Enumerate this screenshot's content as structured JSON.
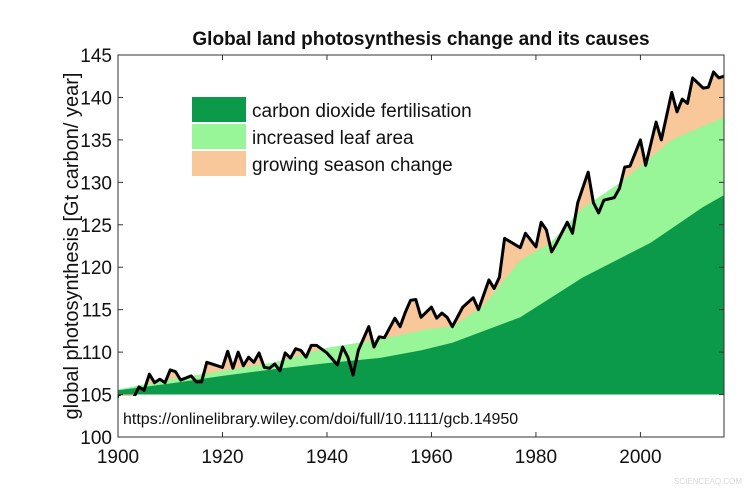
{
  "chart_data": {
    "type": "area",
    "title": "Global land photosynthesis change and its causes",
    "xlabel": "",
    "ylabel": "global photosynthesis [Gt carbon/ year]",
    "xlim": [
      1900,
      2016
    ],
    "ylim": [
      100,
      145
    ],
    "baseline": 105,
    "xticks": [
      1900,
      1920,
      1940,
      1960,
      1980,
      2000
    ],
    "yticks": [
      100,
      105,
      110,
      115,
      120,
      125,
      130,
      135,
      140,
      145
    ],
    "grid": false,
    "legend_position": "top-left",
    "annotation": "https://onlinelibrary.wiley.com/doi/full/10.1111/gcb.14950",
    "series": [
      {
        "name": "carbon dioxide fertilisation",
        "color": "#0a9a4a",
        "x": [
          1900,
          1910,
          1920,
          1930,
          1940,
          1950,
          1958,
          1964,
          1977,
          1989,
          2002,
          2012,
          2016
        ],
        "y": [
          105.5,
          106.3,
          107.2,
          108.0,
          108.7,
          109.3,
          110.2,
          111.1,
          114.1,
          118.8,
          122.9,
          127.1,
          128.5
        ]
      },
      {
        "name": "increased leaf area",
        "color": "#98f598",
        "x": [
          1900,
          1910,
          1920,
          1930,
          1940,
          1950,
          1960,
          1964,
          1970,
          1977,
          1983,
          1989,
          1996,
          2006,
          2016
        ],
        "y": [
          105.6,
          106.8,
          107.8,
          108.8,
          110.5,
          111.5,
          112.8,
          113.0,
          115.5,
          120.8,
          123.0,
          127.0,
          129.9,
          135.0,
          137.7
        ]
      },
      {
        "name": "growing season change",
        "color": "#f8c89a",
        "x": [
          1900,
          1902,
          1903,
          1904,
          1905,
          1906,
          1907,
          1908,
          1909,
          1910,
          1911,
          1912,
          1914,
          1915,
          1916,
          1917,
          1920,
          1921,
          1922,
          1923,
          1924,
          1925,
          1926,
          1927,
          1928,
          1929,
          1930,
          1931,
          1932,
          1933,
          1934,
          1935,
          1936,
          1937,
          1938,
          1940,
          1942,
          1943,
          1944,
          1945,
          1946,
          1948,
          1949,
          1950,
          1951,
          1953,
          1954,
          1955,
          1956,
          1957,
          1958,
          1960,
          1961,
          1962,
          1963,
          1964,
          1966,
          1968,
          1969,
          1971,
          1972,
          1973,
          1974,
          1977,
          1978,
          1980,
          1981,
          1982,
          1983,
          1984,
          1986,
          1987,
          1988,
          1990,
          1991,
          1992,
          1993,
          1995,
          1996,
          1997,
          1998,
          2000,
          2001,
          2003,
          2004,
          2006,
          2007,
          2008,
          2009,
          2010,
          2012,
          2013,
          2014,
          2015,
          2016
        ],
        "y": [
          104.9,
          104.0,
          104.6,
          105.9,
          105.5,
          107.4,
          106.4,
          106.8,
          106.4,
          107.9,
          107.7,
          106.7,
          107.2,
          106.5,
          106.5,
          108.8,
          108.2,
          110.1,
          108.1,
          110.0,
          108.4,
          109.4,
          108.8,
          109.9,
          108.2,
          108.1,
          108.6,
          107.8,
          109.9,
          109.3,
          110.4,
          110.2,
          109.4,
          110.8,
          110.8,
          109.9,
          108.5,
          110.6,
          109.4,
          107.3,
          110.2,
          113.0,
          110.6,
          111.8,
          111.7,
          114.0,
          113.0,
          114.7,
          116.1,
          116.2,
          114.1,
          115.3,
          114.0,
          114.6,
          114.1,
          113.0,
          115.3,
          116.4,
          115.0,
          118.5,
          117.5,
          118.8,
          123.4,
          122.3,
          124.0,
          122.4,
          125.3,
          124.4,
          121.8,
          122.9,
          125.3,
          124.0,
          127.6,
          131.2,
          127.6,
          126.4,
          127.9,
          128.2,
          129.3,
          131.8,
          131.9,
          135.0,
          132.0,
          137.1,
          135.0,
          140.6,
          138.3,
          139.8,
          139.3,
          142.3,
          141.1,
          141.2,
          143.0,
          142.3,
          142.5
        ]
      }
    ],
    "total_line_color": "#000000"
  },
  "watermark": "SCIENCEAQ.COM"
}
